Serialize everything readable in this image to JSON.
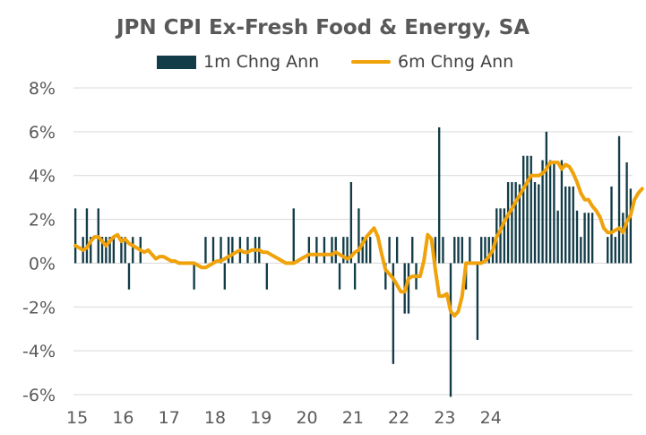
{
  "chart_data": {
    "type": "bar+line",
    "title": "JPN CPI Ex-Fresh Food & Energy, SA",
    "xlabel": "",
    "ylabel": "",
    "ylim": [
      -6,
      8
    ],
    "yticks": [
      "8%",
      "6%",
      "4%",
      "2%",
      "0%",
      "-2%",
      "-4%",
      "-6%"
    ],
    "ytick_values": [
      8,
      6,
      4,
      2,
      0,
      -2,
      -4,
      -6
    ],
    "xticks": [
      "15",
      "16",
      "17",
      "18",
      "19",
      "20",
      "21",
      "22",
      "23",
      "24"
    ],
    "grid": true,
    "legend_position": "top-center",
    "colors": {
      "bar": "#123c47",
      "line": "#f0a20a",
      "grid": "#d9d9d9",
      "axis_text": "#595959"
    },
    "series": [
      {
        "name": "1m Chng Ann",
        "kind": "bar",
        "start": "2015-01",
        "values": [
          2.5,
          0,
          1.2,
          2.5,
          1.2,
          0,
          2.5,
          1.2,
          1.2,
          1.2,
          1.2,
          0,
          1.2,
          1.2,
          -1.2,
          1.2,
          0,
          1.2,
          0,
          0,
          0,
          0,
          0,
          0,
          0,
          0,
          0,
          0,
          0,
          0,
          0,
          -1.2,
          0,
          0,
          1.2,
          0,
          1.2,
          0,
          1.2,
          -1.2,
          1.2,
          1.2,
          0,
          1.2,
          0,
          1.2,
          0,
          1.2,
          1.2,
          0,
          -1.2,
          0,
          0,
          0,
          0,
          0,
          0,
          2.5,
          0,
          0,
          0,
          1.2,
          0,
          1.2,
          0,
          1.2,
          0,
          1.2,
          1.2,
          -1.2,
          1.2,
          1.2,
          3.7,
          -1.2,
          2.5,
          1.2,
          1.2,
          1.2,
          0,
          0,
          0,
          -1.2,
          1.2,
          -4.6,
          1.2,
          0,
          -2.3,
          -2.3,
          1.2,
          -1.2,
          0,
          0,
          0,
          0,
          1.2,
          6.2,
          1.2,
          0,
          -6.1,
          1.2,
          1.2,
          1.2,
          -1.2,
          1.2,
          0,
          -3.5,
          1.2,
          1.2,
          1.2,
          1.2,
          2.5,
          2.5,
          2.5,
          3.7,
          3.7,
          3.7,
          3.6,
          4.9,
          4.9,
          4.9,
          3.7,
          3.6,
          4.7,
          6.0,
          4.7,
          4.6,
          2.4,
          4.7,
          3.5,
          3.5,
          3.5,
          2.4,
          1.2,
          2.3,
          2.3,
          2.3,
          0,
          0,
          0,
          1.2,
          3.5,
          1.2,
          5.8,
          2.3,
          4.6,
          3.4
        ]
      },
      {
        "name": "6m Chng Ann",
        "kind": "line",
        "start": "2015-01",
        "values": [
          0.8,
          0.7,
          0.6,
          0.7,
          1.0,
          1.2,
          1.2,
          1.0,
          0.8,
          1.0,
          1.2,
          1.3,
          1.0,
          1.1,
          0.9,
          0.8,
          0.7,
          0.6,
          0.5,
          0.6,
          0.4,
          0.2,
          0.3,
          0.3,
          0.2,
          0.1,
          0.1,
          0.0,
          0.0,
          0.0,
          0.0,
          0.0,
          -0.1,
          -0.2,
          -0.2,
          -0.1,
          0.0,
          0.1,
          0.1,
          0.2,
          0.3,
          0.4,
          0.5,
          0.6,
          0.5,
          0.5,
          0.6,
          0.6,
          0.6,
          0.5,
          0.5,
          0.4,
          0.3,
          0.2,
          0.1,
          0.0,
          0.0,
          0.0,
          0.1,
          0.2,
          0.3,
          0.4,
          0.4,
          0.4,
          0.4,
          0.4,
          0.4,
          0.4,
          0.5,
          0.4,
          0.3,
          0.2,
          0.3,
          0.5,
          0.6,
          0.9,
          1.2,
          1.4,
          1.6,
          1.2,
          0.4,
          -0.3,
          -0.5,
          -0.7,
          -1.0,
          -1.3,
          -1.3,
          -0.7,
          -0.6,
          -0.6,
          -0.6,
          0.1,
          1.3,
          1.1,
          -0.3,
          -1.5,
          -1.5,
          -1.4,
          -2.2,
          -2.4,
          -2.2,
          -1.5,
          0.0,
          0.0,
          0.0,
          0.0,
          0.0,
          0.1,
          0.3,
          0.6,
          1.2,
          1.5,
          1.9,
          2.2,
          2.5,
          2.8,
          3.1,
          3.4,
          3.7,
          4.0,
          4.0,
          4.0,
          4.1,
          4.3,
          4.6,
          4.6,
          4.6,
          4.3,
          4.5,
          4.4,
          4.1,
          3.7,
          3.2,
          2.9,
          2.9,
          2.6,
          2.4,
          2.1,
          1.6,
          1.4,
          1.4,
          1.5,
          1.6,
          1.4,
          1.9,
          2.2,
          2.9,
          3.2,
          3.4
        ]
      }
    ]
  }
}
